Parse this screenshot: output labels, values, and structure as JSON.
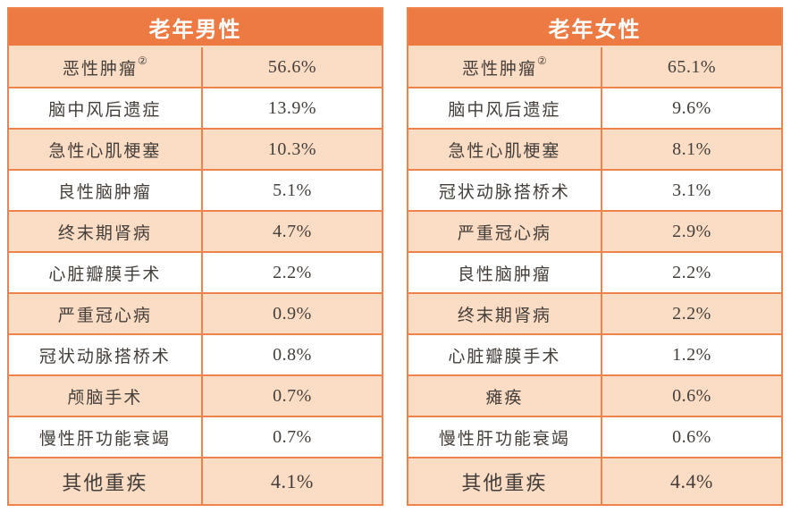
{
  "colors": {
    "header_bg": "#ED7A42",
    "header_text": "#FFFFFF",
    "row_alt_bg": "#FBDCC4",
    "row_white_bg": "#FFFFFF",
    "border": "#F0824C",
    "header_divider": "#F8D8BE",
    "text": "#443E3A",
    "page_bg": "#FFFFFF"
  },
  "tables": [
    {
      "title": "老年男性",
      "rows": [
        {
          "label": "恶性肿瘤",
          "sup": "②",
          "value": "56.6%"
        },
        {
          "label": "脑中风后遗症",
          "sup": "",
          "value": "13.9%"
        },
        {
          "label": "急性心肌梗塞",
          "sup": "",
          "value": "10.3%"
        },
        {
          "label": "良性脑肿瘤",
          "sup": "",
          "value": "5.1%"
        },
        {
          "label": "终末期肾病",
          "sup": "",
          "value": "4.7%"
        },
        {
          "label": "心脏瓣膜手术",
          "sup": "",
          "value": "2.2%"
        },
        {
          "label": "严重冠心病",
          "sup": "",
          "value": "0.9%"
        },
        {
          "label": "冠状动脉搭桥术",
          "sup": "",
          "value": "0.8%"
        },
        {
          "label": "颅脑手术",
          "sup": "",
          "value": "0.7%"
        },
        {
          "label": "慢性肝功能衰竭",
          "sup": "",
          "value": "0.7%"
        },
        {
          "label": "其他重疾",
          "sup": "",
          "value": "4.1%"
        }
      ]
    },
    {
      "title": "老年女性",
      "rows": [
        {
          "label": "恶性肿瘤",
          "sup": "②",
          "value": "65.1%"
        },
        {
          "label": "脑中风后遗症",
          "sup": "",
          "value": "9.6%"
        },
        {
          "label": "急性心肌梗塞",
          "sup": "",
          "value": "8.1%"
        },
        {
          "label": "冠状动脉搭桥术",
          "sup": "",
          "value": "3.1%"
        },
        {
          "label": "严重冠心病",
          "sup": "",
          "value": "2.9%"
        },
        {
          "label": "良性脑肿瘤",
          "sup": "",
          "value": "2.2%"
        },
        {
          "label": "终末期肾病",
          "sup": "",
          "value": "2.2%"
        },
        {
          "label": "心脏瓣膜手术",
          "sup": "",
          "value": "1.2%"
        },
        {
          "label": "瘫痪",
          "sup": "",
          "value": "0.6%"
        },
        {
          "label": "慢性肝功能衰竭",
          "sup": "",
          "value": "0.6%"
        },
        {
          "label": "其他重疾",
          "sup": "",
          "value": "4.4%"
        }
      ]
    }
  ]
}
